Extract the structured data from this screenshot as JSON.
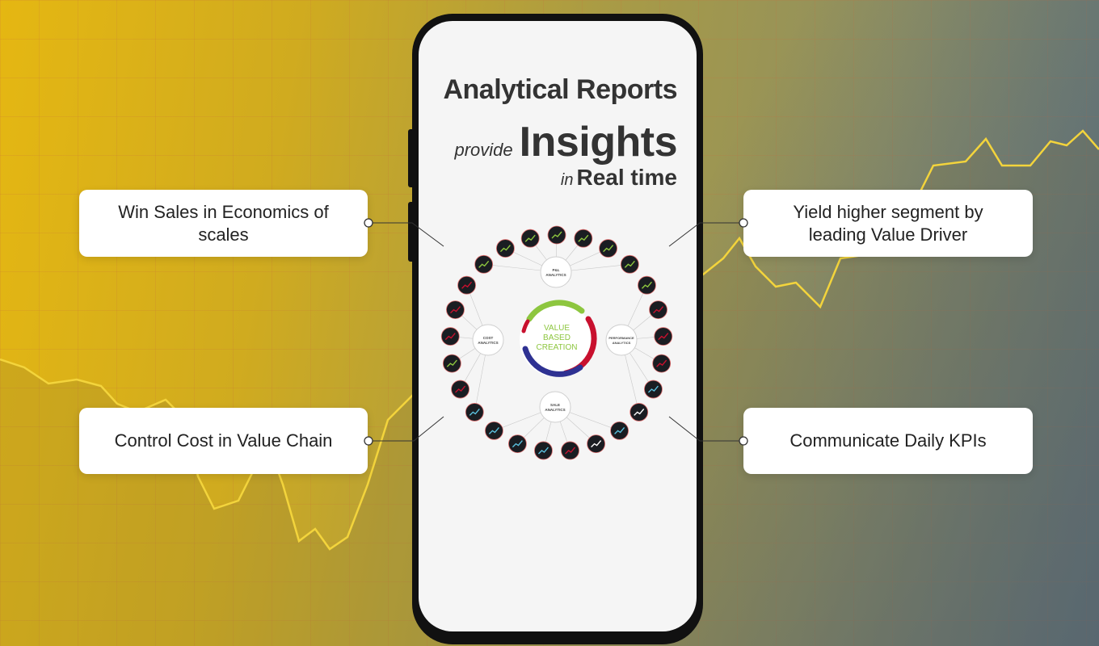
{
  "headline": {
    "line1": "Analytical Reports",
    "line2_small": "provide",
    "line2_big": "Insights",
    "line3_small": "in",
    "line3_big": "Real time"
  },
  "cards": {
    "top_left": "Win Sales in Economics of scales",
    "bottom_left": "Control Cost in Value Chain",
    "top_right": "Yield higher segment by leading Value Driver",
    "bottom_right": "Communicate  Daily KPIs"
  },
  "diagram": {
    "center_line1": "VALUE",
    "center_line2": "BASED",
    "center_line3": "CREATION",
    "hub_pl_line1": "P&L",
    "hub_pl_line2": "ANALYTICS",
    "hub_cost_line1": "COST",
    "hub_cost_line2": "ANALYTICS",
    "hub_perf_line1": "PERFORMANCE",
    "hub_perf_line2": "ANALYTICS",
    "hub_sale_line1": "SALE",
    "hub_sale_line2": "ANALYTICS"
  },
  "colors": {
    "accent_green": "#8dc63f",
    "accent_red": "#c8102e",
    "accent_blue": "#2e3192",
    "text_dark": "#333333"
  }
}
